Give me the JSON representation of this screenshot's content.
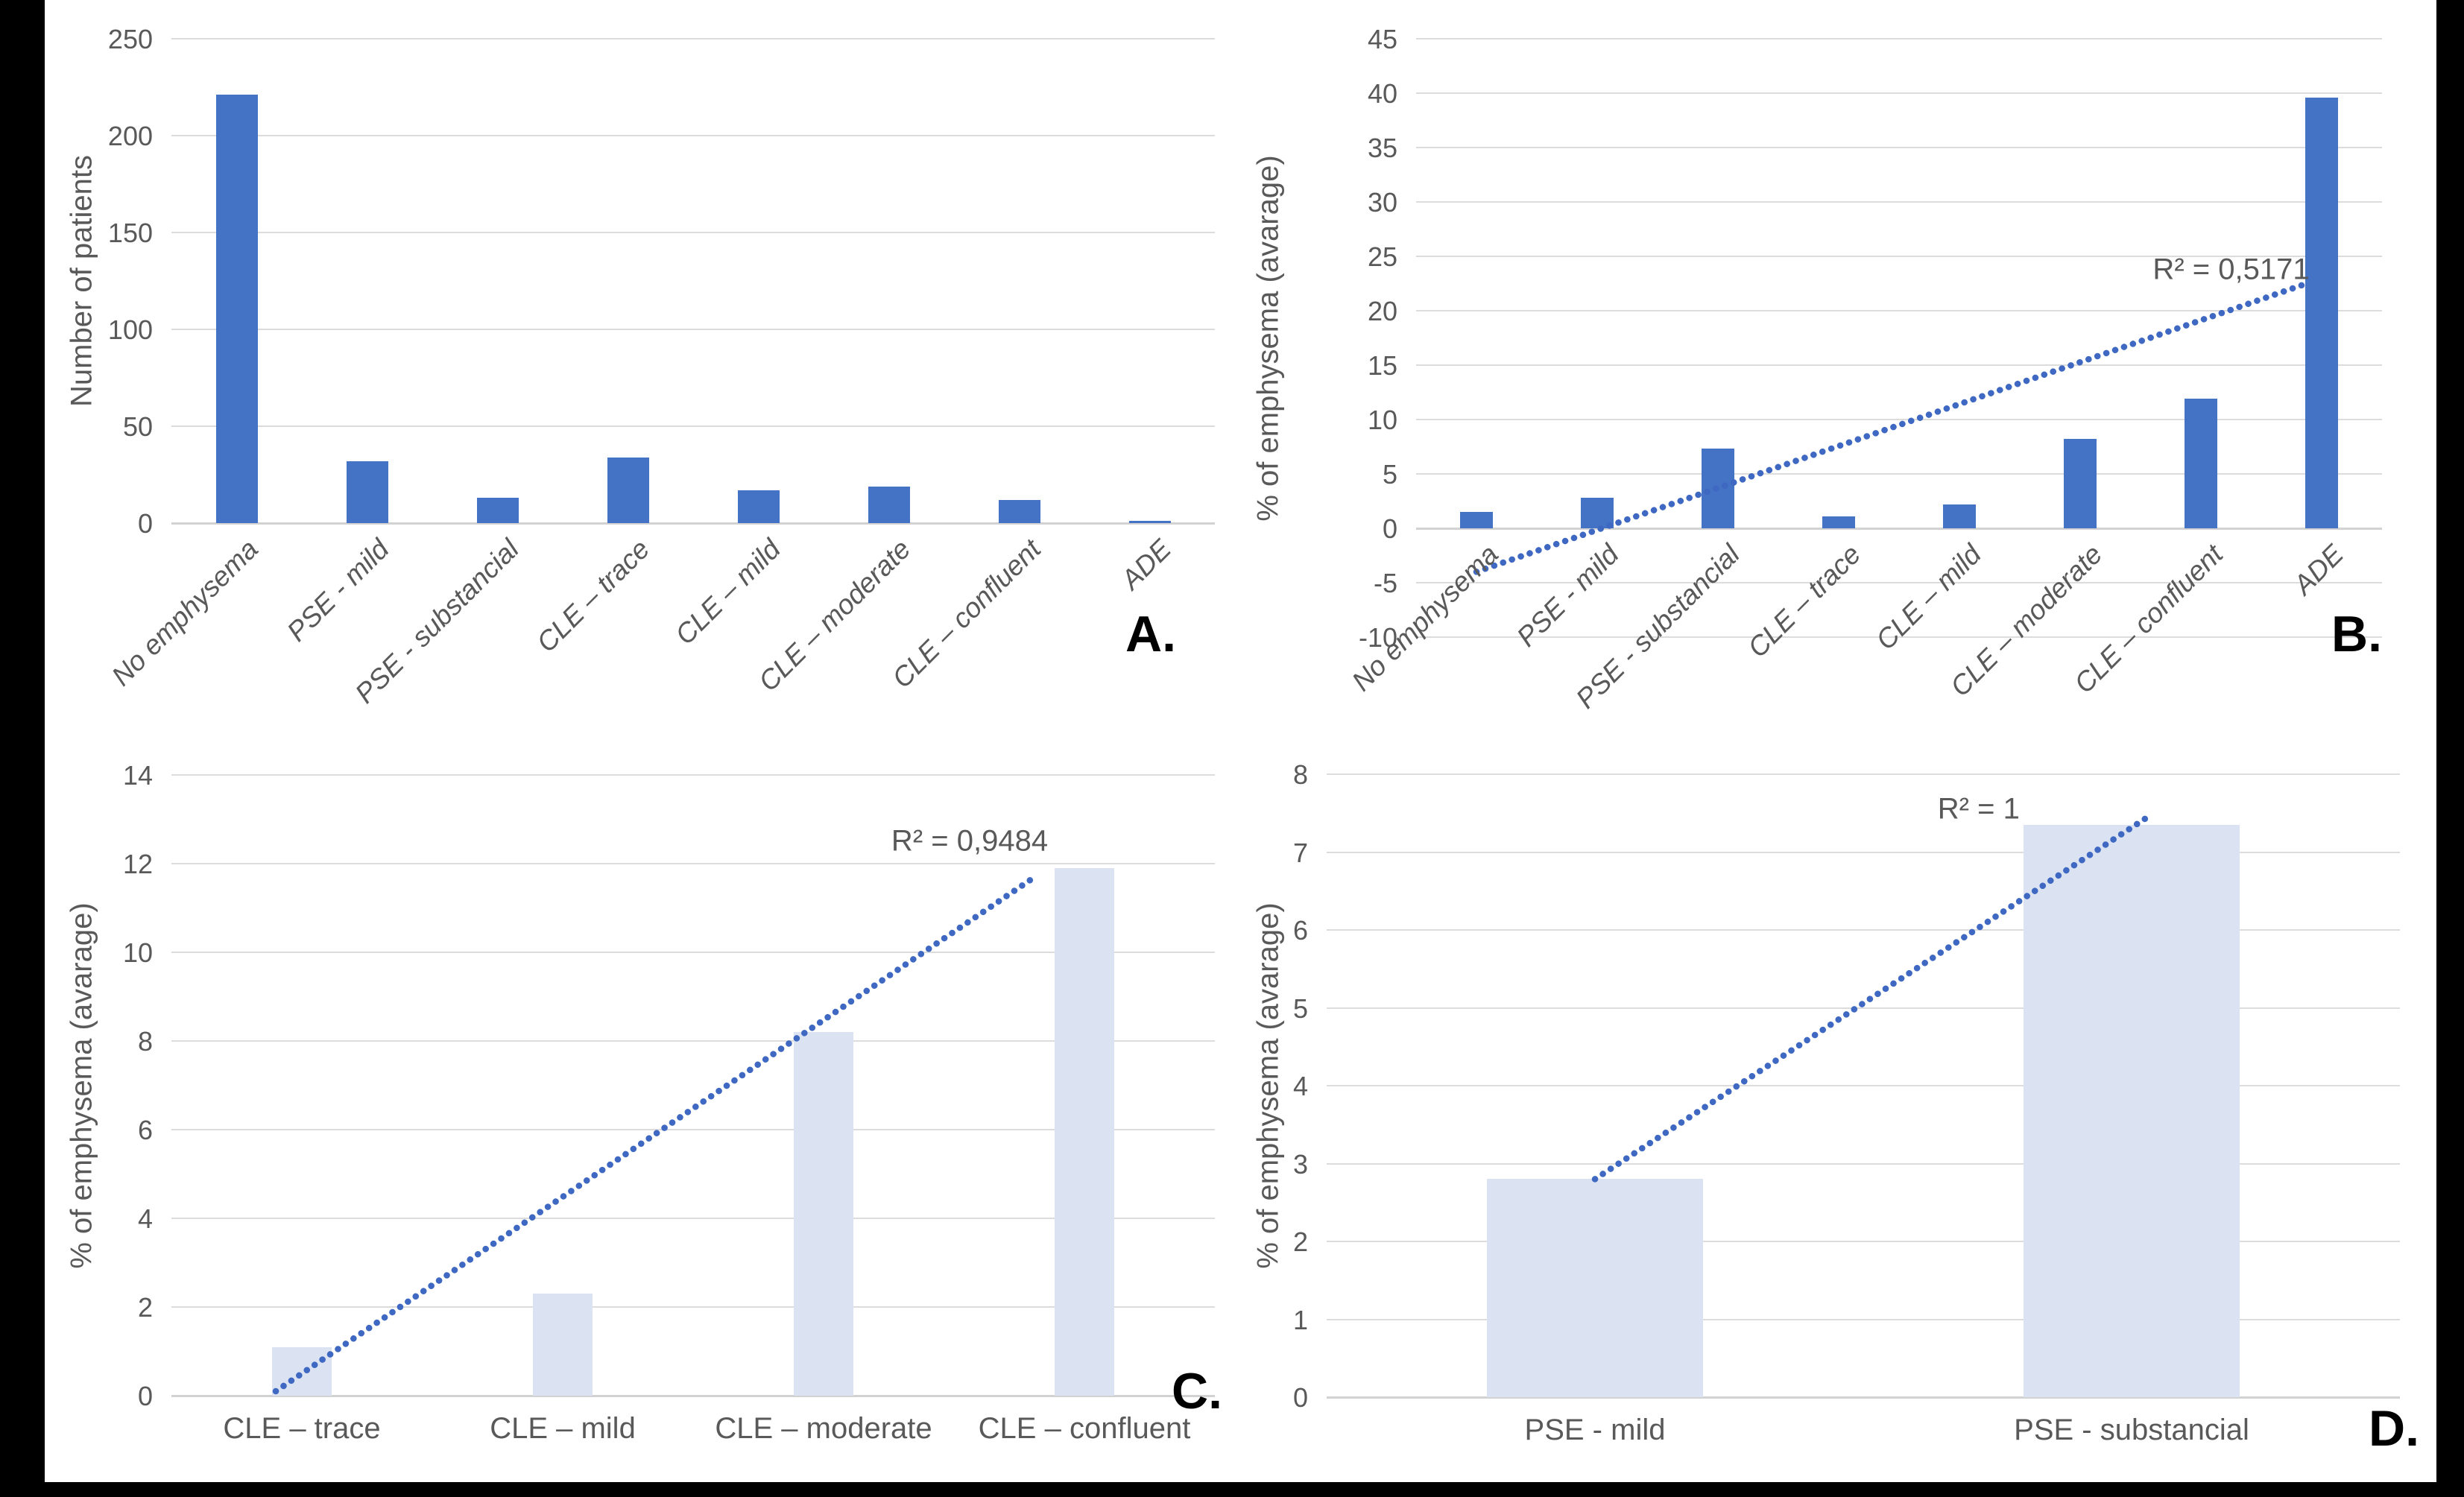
{
  "colors": {
    "background": "#000000",
    "chart_bg": "#FFFFFF",
    "gridline": "#DCDCDC",
    "axis_line": "#D2D2D2",
    "text": "#595959",
    "trendline": "#3E68C1",
    "panel_letter": "#000000",
    "bar_dark": "#4472C4",
    "bar_light": "#DBE3F2"
  },
  "chart_data": [
    {
      "type": "bar",
      "panel_label": "A.",
      "ylabel": "Number of patients",
      "ymin": 0,
      "ymax": 250,
      "ystep": 50,
      "grid": true,
      "legend": "none",
      "categories": [
        "No emphysema",
        "PSE - mild",
        "PSE - substancial",
        "CLE – trace",
        "CLE – mild",
        "CLE – moderate",
        "CLE – confluent",
        "ADE"
      ],
      "values": [
        221,
        32,
        13,
        34,
        17,
        19,
        12,
        1
      ],
      "bar_color": "#4472C4",
      "rotated_labels": true,
      "trendline": null
    },
    {
      "type": "bar",
      "panel_label": "B.",
      "ylabel": "% of emphysema (avarage)",
      "ymin": -10,
      "ymax": 45,
      "ystep": 5,
      "grid": true,
      "legend": "none",
      "categories": [
        "No emphysema",
        "PSE - mild",
        "PSE - substancial",
        "CLE – trace",
        "CLE – mild",
        "CLE – moderate",
        "CLE – confluent",
        "ADE"
      ],
      "values": [
        1.5,
        2.8,
        7.3,
        1.1,
        2.2,
        8.2,
        11.9,
        39.6
      ],
      "bar_color": "#4472C4",
      "rotated_labels": true,
      "trendline": {
        "r2_label": "R² = 0,5171",
        "start": {
          "x": 0.5,
          "v": -4.0
        },
        "end": {
          "x": 7.35,
          "v": 22.4
        },
        "label_pos": {
          "x": 6.75,
          "v": 23.8
        }
      }
    },
    {
      "type": "bar",
      "panel_label": "C.",
      "ylabel": "% of emphysema (avarage)",
      "ymin": 0,
      "ymax": 14,
      "ystep": 2,
      "grid": true,
      "legend": "none",
      "categories": [
        "CLE – trace",
        "CLE – mild",
        "CLE – moderate",
        "CLE – confluent"
      ],
      "values": [
        1.1,
        2.3,
        8.2,
        11.9
      ],
      "bar_color": "#DBE3F2",
      "rotated_labels": false,
      "trendline": {
        "r2_label": "R² = 0,9484",
        "start": {
          "x": 0.4,
          "v": 0.1
        },
        "end": {
          "x": 3.31,
          "v": 11.7
        },
        "label_pos": {
          "x": 3.06,
          "v": 12.5
        }
      }
    },
    {
      "type": "bar",
      "panel_label": "D.",
      "ylabel": "% of emphysema (avarage)",
      "ymin": 0,
      "ymax": 8,
      "ystep": 1,
      "grid": true,
      "legend": "none",
      "categories": [
        "PSE - mild",
        "PSE - substancial"
      ],
      "values": [
        2.8,
        7.35
      ],
      "bar_color": "#DBE3F2",
      "rotated_labels": false,
      "trendline": {
        "r2_label": "R² = 1",
        "start": {
          "x": 0.5,
          "v": 2.8
        },
        "end": {
          "x": 1.53,
          "v": 7.45
        },
        "label_pos": {
          "x": 1.215,
          "v": 7.55
        }
      }
    }
  ]
}
